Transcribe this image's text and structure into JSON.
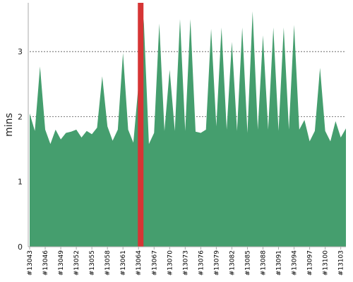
{
  "chart_data": {
    "type": "area",
    "title": "",
    "xlabel": "",
    "ylabel": "mins",
    "ylim": [
      0,
      3.75
    ],
    "yticks": [
      0,
      1,
      2,
      3
    ],
    "grid": true,
    "colors": {
      "area": "#459e6e",
      "highlight": "#d63535",
      "grid": "#555555",
      "axis": "#aaaaaa"
    },
    "highlight_build": "#13064",
    "x_tick_labels": [
      "#13043",
      "#13046",
      "#13049",
      "#13052",
      "#13055",
      "#13058",
      "#13061",
      "#13064",
      "#13067",
      "#13070",
      "#13073",
      "#13076",
      "#13079",
      "#13082",
      "#13085",
      "#13088",
      "#13091",
      "#13094",
      "#13097",
      "#13100",
      "#13103"
    ],
    "x": [
      "#13043",
      "#13044",
      "#13045",
      "#13046",
      "#13047",
      "#13048",
      "#13049",
      "#13050",
      "#13051",
      "#13052",
      "#13053",
      "#13054",
      "#13055",
      "#13056",
      "#13057",
      "#13058",
      "#13059",
      "#13060",
      "#13061",
      "#13062",
      "#13063",
      "#13064",
      "#13065",
      "#13066",
      "#13067",
      "#13068",
      "#13069",
      "#13070",
      "#13071",
      "#13072",
      "#13073",
      "#13074",
      "#13075",
      "#13076",
      "#13077",
      "#13078",
      "#13079",
      "#13080",
      "#13081",
      "#13082",
      "#13083",
      "#13084",
      "#13085",
      "#13086",
      "#13087",
      "#13088",
      "#13089",
      "#13090",
      "#13091",
      "#13092",
      "#13093",
      "#13094",
      "#13095",
      "#13096",
      "#13097",
      "#13098",
      "#13099",
      "#13100",
      "#13101",
      "#13102",
      "#13103",
      "#13104"
    ],
    "values": [
      2.05,
      1.78,
      2.77,
      1.8,
      1.58,
      1.8,
      1.65,
      1.75,
      1.77,
      1.8,
      1.68,
      1.78,
      1.73,
      1.83,
      2.62,
      1.85,
      1.63,
      1.8,
      2.98,
      1.8,
      1.6,
      2.5,
      3.5,
      1.58,
      1.75,
      3.43,
      1.78,
      2.72,
      1.78,
      3.5,
      1.78,
      3.5,
      1.77,
      1.75,
      1.8,
      3.35,
      1.85,
      3.37,
      1.8,
      3.15,
      1.78,
      3.37,
      1.75,
      3.62,
      1.8,
      3.25,
      1.8,
      3.37,
      1.78,
      3.37,
      1.8,
      3.41,
      1.8,
      1.95,
      1.62,
      1.78,
      2.75,
      1.78,
      1.62,
      1.93,
      1.68,
      1.82
    ]
  }
}
